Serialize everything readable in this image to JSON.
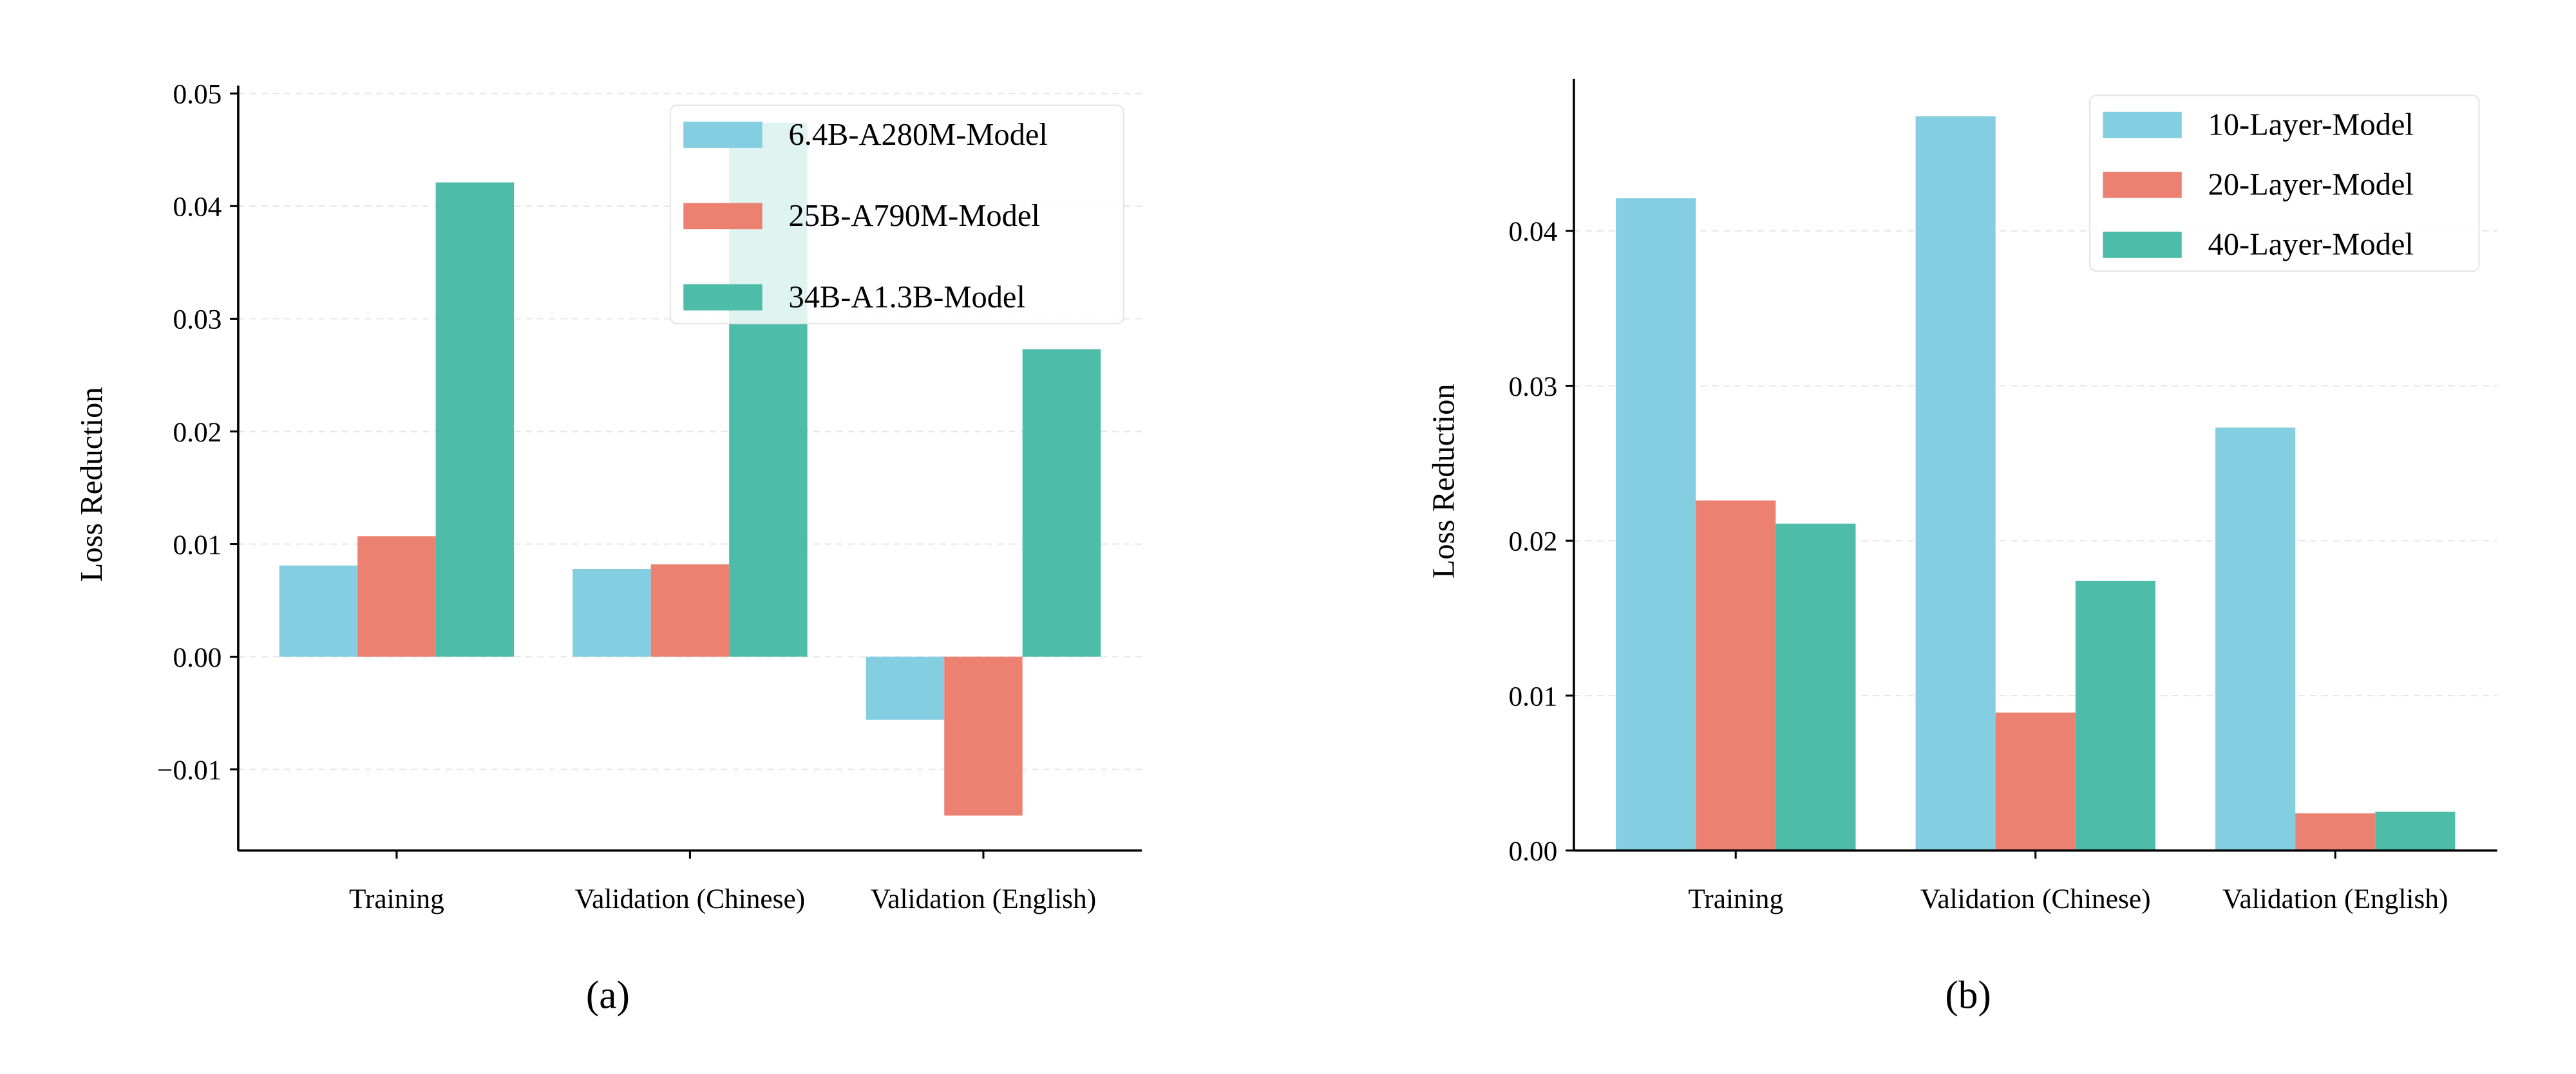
{
  "colors": {
    "series_1": "#83cee1",
    "series_2": "#ec8172",
    "series_3": "#4dbda9"
  },
  "chart_data": [
    {
      "type": "bar",
      "caption": "(a)",
      "ylabel": "Loss Reduction",
      "xlabel": "",
      "categories": [
        "Training",
        "Validation (Chinese)",
        "Validation (English)"
      ],
      "yticks": [
        -0.01,
        0.0,
        0.01,
        0.02,
        0.03,
        0.04,
        0.05
      ],
      "ytick_labels": [
        "−0.01",
        "0.00",
        "0.01",
        "0.02",
        "0.03",
        "0.04",
        "0.05"
      ],
      "ylim": [
        -0.0172,
        0.0507
      ],
      "grid": true,
      "legend_position": "top-right",
      "series": [
        {
          "name": "6.4B-A280M-Model",
          "values": [
            0.0081,
            0.0078,
            -0.0056
          ]
        },
        {
          "name": "25B-A790M-Model",
          "values": [
            0.0107,
            0.0082,
            -0.0141
          ]
        },
        {
          "name": "34B-A1.3B-Model",
          "values": [
            0.0421,
            0.0474,
            0.0273
          ]
        }
      ]
    },
    {
      "type": "bar",
      "caption": "(b)",
      "ylabel": "Loss Reduction",
      "xlabel": "",
      "categories": [
        "Training",
        "Validation (Chinese)",
        "Validation (English)"
      ],
      "yticks": [
        0.0,
        0.01,
        0.02,
        0.03,
        0.04
      ],
      "ytick_labels": [
        "0.00",
        "0.01",
        "0.02",
        "0.03",
        "0.04"
      ],
      "ylim": [
        0.0,
        0.0498
      ],
      "grid": true,
      "legend_position": "top-right",
      "series": [
        {
          "name": "10-Layer-Model",
          "values": [
            0.0421,
            0.0474,
            0.0273
          ]
        },
        {
          "name": "20-Layer-Model",
          "values": [
            0.0226,
            0.0089,
            0.0024
          ]
        },
        {
          "name": "40-Layer-Model",
          "values": [
            0.0211,
            0.0174,
            0.0025
          ]
        }
      ]
    }
  ]
}
